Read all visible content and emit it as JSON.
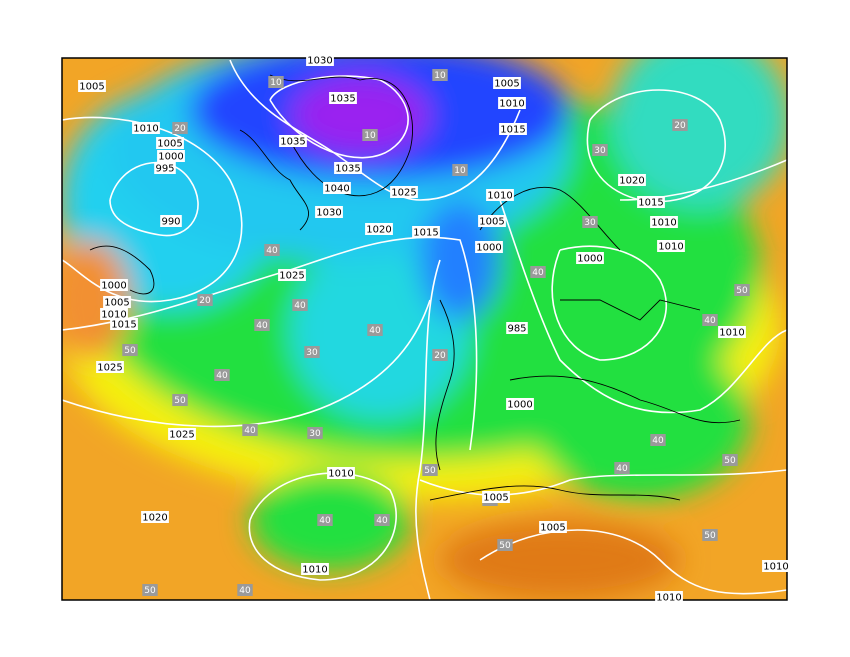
{
  "pressure_labels": [
    1030,
    1005,
    1005,
    1010,
    1035,
    1010,
    1015,
    1035,
    1005,
    1000,
    995,
    1035,
    1040,
    1025,
    1010,
    1020,
    1015,
    1030,
    990,
    1005,
    1010,
    1020,
    1015,
    1000,
    1010,
    1025,
    1000,
    1000,
    1005,
    1010,
    1015,
    985,
    1010,
    1025,
    1000,
    1025,
    1010,
    1005,
    1020,
    1005,
    1010,
    1010,
    1010
  ],
  "thickness_labels": [
    10,
    10,
    10,
    10,
    20,
    30,
    40,
    40,
    50,
    50,
    40,
    40,
    40,
    30,
    20,
    20,
    30,
    40,
    50,
    50,
    40,
    40,
    40,
    50,
    50,
    40,
    30,
    20,
    40,
    50,
    40,
    50,
    40,
    50
  ]
}
